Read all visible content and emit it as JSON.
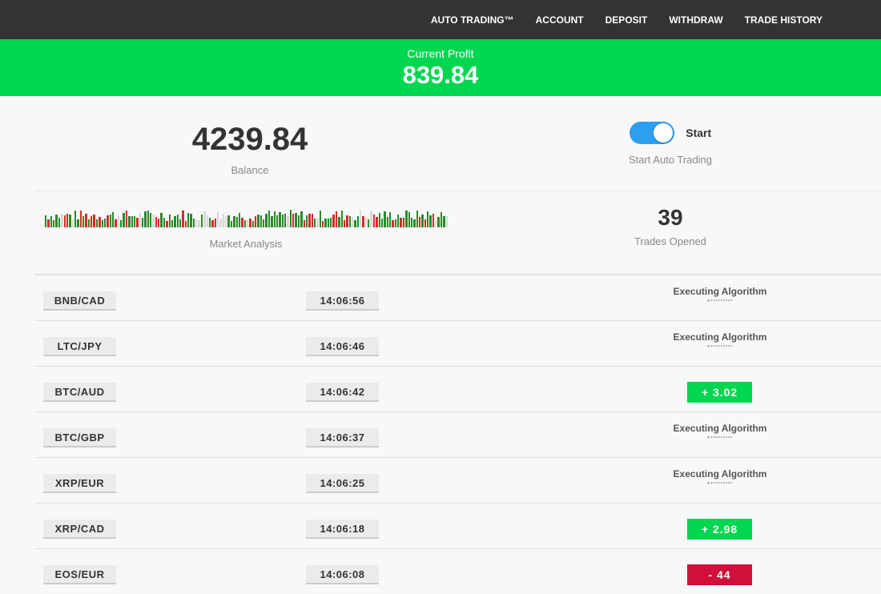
{
  "nav": [
    "AUTO TRADING™",
    "ACCOUNT",
    "DEPOSIT",
    "WITHDRAW",
    "TRADE HISTORY"
  ],
  "profit": {
    "label": "Current Profit",
    "value": "839.84"
  },
  "balance": {
    "value": "4239.84",
    "label": "Balance"
  },
  "auto": {
    "toggle_label": "Start",
    "label": "Start Auto Trading",
    "on": true
  },
  "market": {
    "label": "Market Analysis",
    "colors": {
      "up": "#2a8a2a",
      "down": "#d92a2a",
      "neutral": "#d8d8d8"
    }
  },
  "trades": {
    "value": "39",
    "label": "Trades Opened"
  },
  "rows": [
    {
      "pair": "BNB/CAD",
      "time": "14:06:56",
      "status": "Executing Algorithm"
    },
    {
      "pair": "LTC/JPY",
      "time": "14:06:46",
      "status": "Executing Algorithm"
    },
    {
      "pair": "BTC/AUD",
      "time": "14:06:42",
      "result": "+ 3.02",
      "type": "gain"
    },
    {
      "pair": "BTC/GBP",
      "time": "14:06:37",
      "status": "Executing Algorithm"
    },
    {
      "pair": "XRP/EUR",
      "time": "14:06:25",
      "status": "Executing Algorithm"
    },
    {
      "pair": "XRP/CAD",
      "time": "14:06:18",
      "result": "+ 2.98",
      "type": "gain"
    },
    {
      "pair": "EOS/EUR",
      "time": "14:06:08",
      "result": "-  44",
      "type": "loss"
    }
  ],
  "colors": {
    "gain": "#00d650",
    "loss": "#d0103a"
  }
}
